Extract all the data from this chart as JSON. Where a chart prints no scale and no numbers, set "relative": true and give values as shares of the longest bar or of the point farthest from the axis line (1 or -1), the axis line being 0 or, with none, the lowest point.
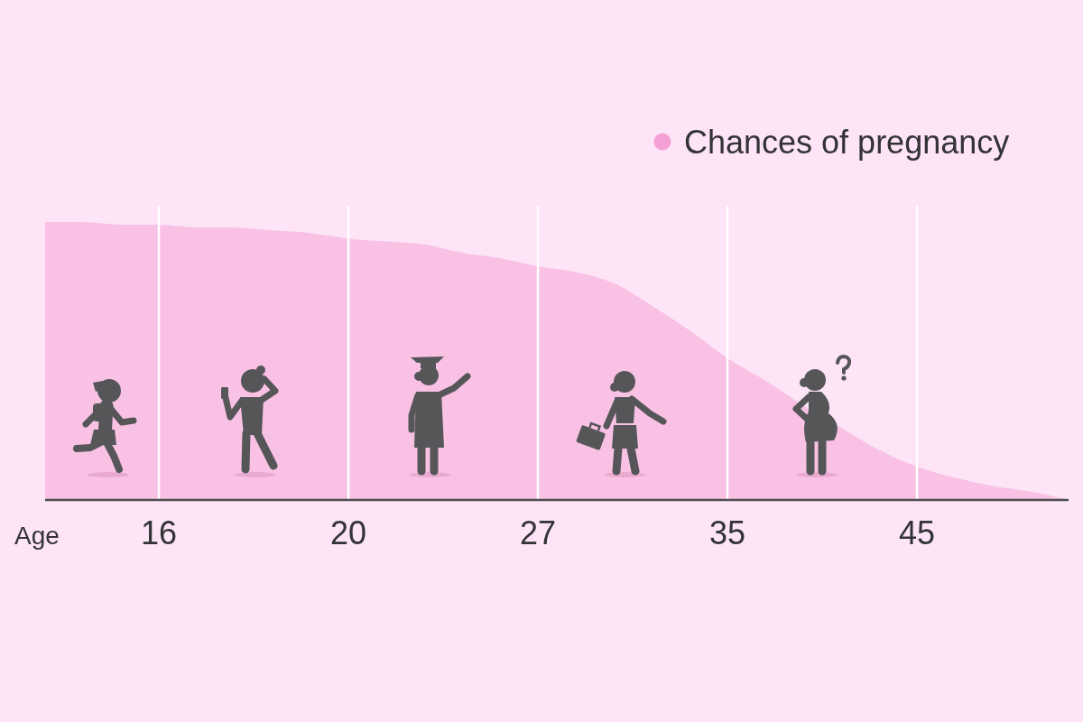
{
  "chart_data": {
    "type": "area",
    "xlabel": "Age",
    "relative": true,
    "grid": "x",
    "legend": "top right",
    "categories": [
      null,
      null,
      null,
      "16",
      null,
      null,
      null,
      null,
      "20",
      null,
      null,
      null,
      null,
      "27",
      null,
      null,
      null,
      null,
      "35",
      null,
      null,
      null,
      null,
      "45",
      null,
      null,
      null,
      null
    ],
    "series": [
      {
        "name": "Chances of pregnancy",
        "color": "#f5a0d4",
        "values": [
          1.0,
          1.0,
          0.99,
          0.99,
          0.98,
          0.98,
          0.97,
          0.96,
          0.94,
          0.93,
          0.92,
          0.89,
          0.87,
          0.84,
          0.82,
          0.78,
          0.7,
          0.61,
          0.51,
          0.43,
          0.34,
          0.26,
          0.18,
          0.12,
          0.08,
          0.05,
          0.03,
          0
        ]
      }
    ]
  }
}
